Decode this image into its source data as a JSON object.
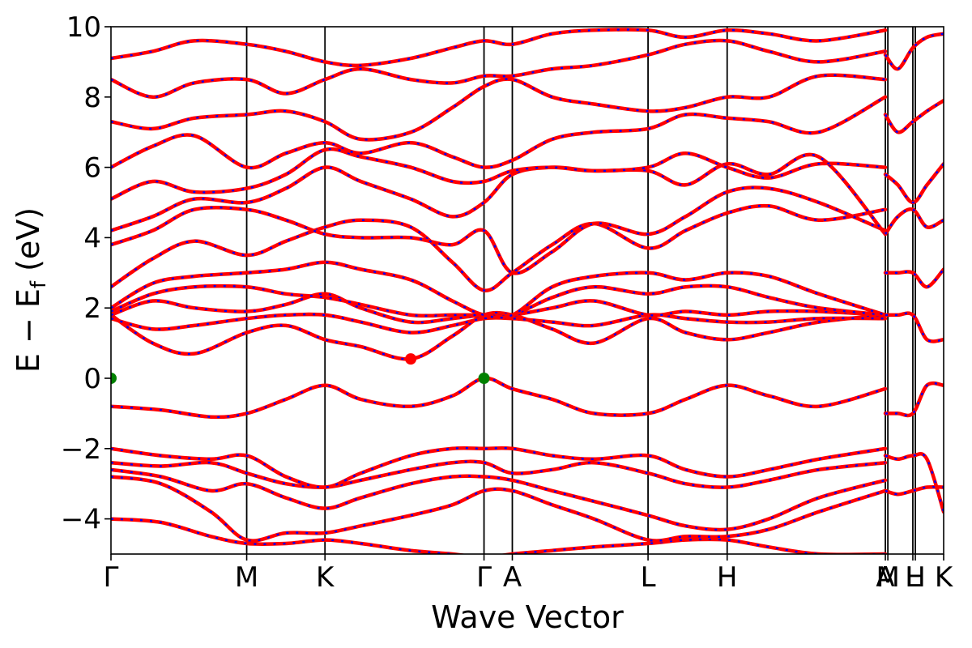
{
  "chart_data": {
    "type": "line",
    "title": "",
    "xlabel": "Wave Vector",
    "ylabel_main": "E − E",
    "ylabel_sub": "f",
    "ylabel_unit": " (eV)",
    "ylim": [
      -5,
      10
    ],
    "y_ticks": [
      {
        "value": -4,
        "label": "−4"
      },
      {
        "value": -2,
        "label": "−2"
      },
      {
        "value": 0,
        "label": "0"
      },
      {
        "value": 2,
        "label": "2"
      },
      {
        "value": 4,
        "label": "4"
      },
      {
        "value": 6,
        "label": "6"
      },
      {
        "value": 8,
        "label": "8"
      },
      {
        "value": 10,
        "label": "10"
      }
    ],
    "xlim": [
      0,
      1
    ],
    "k_points": [
      {
        "pos": 0.0,
        "label": "Γ"
      },
      {
        "pos": 0.163,
        "label": "M"
      },
      {
        "pos": 0.257,
        "label": "K"
      },
      {
        "pos": 0.448,
        "label": "Γ"
      },
      {
        "pos": 0.482,
        "label": "A"
      },
      {
        "pos": 0.645,
        "label": "L"
      },
      {
        "pos": 0.74,
        "label": "H"
      },
      {
        "pos": 0.93,
        "label": "A"
      },
      {
        "pos": 0.933,
        "label": "M"
      },
      {
        "pos": 0.963,
        "label": "L"
      },
      {
        "pos": 0.966,
        "label": "H"
      },
      {
        "pos": 1.0,
        "label": "K"
      }
    ],
    "series_colors": {
      "primary": "#ff0000",
      "overlay": "#0000ff"
    },
    "band_extrema": {
      "vbm": [
        {
          "k": 0.0,
          "E": 0.0
        },
        {
          "k": 0.448,
          "E": 0.0
        }
      ],
      "cbm": [
        {
          "k": 0.36,
          "E": 0.55
        }
      ],
      "vbm_color": "#008000",
      "cbm_color": "#ff0000"
    },
    "bands": [
      {
        "k": [
          0,
          0.06,
          0.12,
          0.163,
          0.21,
          0.257,
          0.3,
          0.36,
          0.41,
          0.448,
          0.482,
          0.53,
          0.58,
          0.645,
          0.69,
          0.74,
          0.79,
          0.85,
          0.93
        ],
        "E": [
          -4.0,
          -4.1,
          -4.5,
          -4.7,
          -4.7,
          -4.6,
          -4.7,
          -4.9,
          -5.0,
          -5.1,
          -5.0,
          -4.9,
          -4.8,
          -4.7,
          -4.6,
          -4.6,
          -4.8,
          -5.0,
          -5.0
        ]
      },
      {
        "k": [
          0,
          0.06,
          0.12,
          0.163,
          0.21,
          0.257,
          0.3,
          0.36,
          0.41,
          0.448,
          0.482,
          0.53,
          0.58,
          0.645,
          0.69,
          0.74,
          0.79,
          0.85,
          0.93
        ],
        "E": [
          -2.8,
          -3.0,
          -3.8,
          -4.6,
          -4.4,
          -4.4,
          -4.2,
          -3.9,
          -3.6,
          -3.2,
          -3.2,
          -3.6,
          -4.0,
          -4.6,
          -4.5,
          -4.5,
          -4.3,
          -3.8,
          -3.2
        ]
      },
      {
        "k": [
          0,
          0.06,
          0.12,
          0.163,
          0.21,
          0.257,
          0.3,
          0.36,
          0.41,
          0.448,
          0.482,
          0.53,
          0.58,
          0.645,
          0.69,
          0.74,
          0.79,
          0.85,
          0.93
        ],
        "E": [
          -2.6,
          -2.8,
          -3.2,
          -3.0,
          -3.4,
          -3.7,
          -3.4,
          -3.0,
          -2.8,
          -2.8,
          -2.9,
          -3.2,
          -3.5,
          -3.9,
          -4.2,
          -4.3,
          -4.0,
          -3.4,
          -2.9
        ]
      },
      {
        "k": [
          0,
          0.06,
          0.12,
          0.163,
          0.21,
          0.257,
          0.3,
          0.36,
          0.41,
          0.448,
          0.482,
          0.53,
          0.58,
          0.645,
          0.69,
          0.74,
          0.79,
          0.85,
          0.93
        ],
        "E": [
          -2.4,
          -2.5,
          -2.4,
          -2.7,
          -3.0,
          -3.1,
          -2.9,
          -2.6,
          -2.4,
          -2.4,
          -2.7,
          -2.6,
          -2.4,
          -2.7,
          -3.0,
          -3.1,
          -2.9,
          -2.6,
          -2.4
        ]
      },
      {
        "k": [
          0,
          0.06,
          0.12,
          0.163,
          0.21,
          0.257,
          0.3,
          0.36,
          0.41,
          0.448,
          0.482,
          0.53,
          0.58,
          0.645,
          0.69,
          0.74,
          0.79,
          0.85,
          0.93
        ],
        "E": [
          -2.0,
          -2.2,
          -2.3,
          -2.2,
          -2.8,
          -3.1,
          -2.7,
          -2.2,
          -2.0,
          -2.0,
          -2.0,
          -2.2,
          -2.3,
          -2.2,
          -2.6,
          -2.8,
          -2.6,
          -2.3,
          -2.0
        ]
      },
      {
        "k": [
          0,
          0.06,
          0.12,
          0.163,
          0.21,
          0.257,
          0.3,
          0.36,
          0.41,
          0.448,
          0.482,
          0.53,
          0.58,
          0.645,
          0.69,
          0.74,
          0.79,
          0.85,
          0.93
        ],
        "E": [
          -0.8,
          -0.9,
          -1.1,
          -1.0,
          -0.6,
          -0.2,
          -0.6,
          -0.8,
          -0.5,
          0.0,
          -0.3,
          -0.6,
          -1.0,
          -1.0,
          -0.6,
          -0.2,
          -0.5,
          -0.8,
          -0.3
        ]
      },
      {
        "k": [
          0,
          0.05,
          0.1,
          0.163,
          0.21,
          0.257,
          0.3,
          0.36,
          0.41,
          0.448,
          0.482,
          0.53,
          0.58,
          0.645,
          0.69,
          0.74,
          0.79,
          0.85,
          0.93
        ],
        "E": [
          1.8,
          1.0,
          0.7,
          1.3,
          1.5,
          1.1,
          0.9,
          0.55,
          1.2,
          1.8,
          1.8,
          1.4,
          1.0,
          1.7,
          1.3,
          1.1,
          1.3,
          1.6,
          1.8
        ]
      },
      {
        "k": [
          0,
          0.05,
          0.1,
          0.163,
          0.21,
          0.257,
          0.3,
          0.36,
          0.41,
          0.448,
          0.482,
          0.53,
          0.58,
          0.645,
          0.69,
          0.74,
          0.79,
          0.85,
          0.93
        ],
        "E": [
          1.7,
          1.4,
          1.5,
          1.7,
          1.8,
          1.8,
          1.6,
          1.3,
          1.5,
          1.7,
          1.7,
          1.6,
          1.5,
          1.8,
          1.7,
          1.6,
          1.6,
          1.7,
          1.7
        ]
      },
      {
        "k": [
          0,
          0.05,
          0.1,
          0.163,
          0.21,
          0.257,
          0.3,
          0.36,
          0.41,
          0.448,
          0.482,
          0.53,
          0.58,
          0.645,
          0.69,
          0.74,
          0.79,
          0.85,
          0.93
        ],
        "E": [
          1.8,
          2.2,
          2.0,
          1.9,
          2.1,
          2.4,
          2.0,
          1.6,
          1.7,
          1.8,
          1.8,
          2.0,
          2.2,
          1.8,
          1.9,
          1.8,
          1.9,
          1.9,
          1.8
        ]
      },
      {
        "k": [
          0,
          0.05,
          0.1,
          0.163,
          0.21,
          0.257,
          0.3,
          0.36,
          0.41,
          0.448,
          0.482,
          0.53,
          0.58,
          0.645,
          0.69,
          0.74,
          0.79,
          0.85,
          0.93
        ],
        "E": [
          1.9,
          2.4,
          2.6,
          2.6,
          2.4,
          2.3,
          2.1,
          1.8,
          1.8,
          1.8,
          1.8,
          2.3,
          2.6,
          2.4,
          2.6,
          2.6,
          2.3,
          2.0,
          1.8
        ]
      },
      {
        "k": [
          0,
          0.05,
          0.1,
          0.163,
          0.21,
          0.257,
          0.3,
          0.36,
          0.41,
          0.448,
          0.482,
          0.53,
          0.58,
          0.645,
          0.69,
          0.74,
          0.79,
          0.85,
          0.93
        ],
        "E": [
          2.0,
          2.7,
          2.9,
          3.0,
          3.1,
          3.3,
          3.1,
          2.8,
          2.2,
          1.8,
          1.8,
          2.6,
          2.9,
          3.0,
          2.8,
          3.0,
          2.9,
          2.4,
          1.8
        ]
      },
      {
        "k": [
          0,
          0.05,
          0.1,
          0.163,
          0.21,
          0.257,
          0.3,
          0.36,
          0.41,
          0.448,
          0.482,
          0.53,
          0.58,
          0.645,
          0.69,
          0.74,
          0.79,
          0.85,
          0.93
        ],
        "E": [
          2.6,
          3.4,
          3.9,
          3.5,
          3.9,
          4.3,
          4.5,
          4.3,
          3.3,
          2.5,
          3.0,
          3.8,
          4.4,
          3.7,
          4.2,
          4.7,
          4.9,
          4.5,
          4.8
        ]
      },
      {
        "k": [
          0,
          0.05,
          0.1,
          0.163,
          0.21,
          0.257,
          0.3,
          0.36,
          0.41,
          0.448,
          0.482,
          0.53,
          0.58,
          0.645,
          0.69,
          0.74,
          0.79,
          0.85,
          0.93
        ],
        "E": [
          3.8,
          4.2,
          4.8,
          4.8,
          4.5,
          4.1,
          4.0,
          4.0,
          3.8,
          4.2,
          3.0,
          3.6,
          4.4,
          4.1,
          4.6,
          5.3,
          5.4,
          5.0,
          4.2
        ]
      },
      {
        "k": [
          0,
          0.05,
          0.1,
          0.163,
          0.21,
          0.257,
          0.3,
          0.36,
          0.41,
          0.448,
          0.482,
          0.53,
          0.58,
          0.645,
          0.69,
          0.74,
          0.79,
          0.85,
          0.93
        ],
        "E": [
          4.2,
          4.6,
          5.1,
          5.0,
          5.4,
          6.0,
          5.6,
          5.1,
          4.6,
          5.0,
          5.8,
          6.0,
          5.9,
          5.9,
          5.5,
          6.1,
          5.8,
          6.3,
          4.1
        ]
      },
      {
        "k": [
          0,
          0.05,
          0.1,
          0.163,
          0.21,
          0.257,
          0.3,
          0.36,
          0.41,
          0.448,
          0.482,
          0.53,
          0.58,
          0.645,
          0.69,
          0.74,
          0.79,
          0.85,
          0.93
        ],
        "E": [
          5.1,
          5.6,
          5.3,
          5.4,
          5.8,
          6.5,
          6.3,
          6.0,
          5.6,
          5.6,
          5.9,
          6.0,
          5.9,
          6.0,
          6.4,
          6.0,
          5.7,
          6.1,
          6.0
        ]
      },
      {
        "k": [
          0,
          0.05,
          0.1,
          0.163,
          0.21,
          0.257,
          0.3,
          0.36,
          0.41,
          0.448,
          0.482,
          0.53,
          0.58,
          0.645,
          0.69,
          0.74,
          0.79,
          0.85,
          0.93
        ],
        "E": [
          6.0,
          6.6,
          6.9,
          6.0,
          6.4,
          6.7,
          6.4,
          6.7,
          6.3,
          6.0,
          6.2,
          6.8,
          7.0,
          7.1,
          7.5,
          7.4,
          7.3,
          7.0,
          8.0
        ]
      },
      {
        "k": [
          0,
          0.05,
          0.1,
          0.163,
          0.21,
          0.257,
          0.3,
          0.36,
          0.41,
          0.448,
          0.482,
          0.53,
          0.58,
          0.645,
          0.69,
          0.74,
          0.79,
          0.85,
          0.93
        ],
        "E": [
          7.3,
          7.1,
          7.4,
          7.5,
          7.6,
          7.3,
          6.8,
          7.0,
          7.7,
          8.3,
          8.5,
          8.0,
          7.8,
          7.6,
          7.7,
          8.0,
          8.0,
          8.6,
          8.5
        ]
      },
      {
        "k": [
          0,
          0.05,
          0.1,
          0.163,
          0.21,
          0.257,
          0.3,
          0.36,
          0.41,
          0.448,
          0.482,
          0.53,
          0.58,
          0.645,
          0.69,
          0.74,
          0.79,
          0.85,
          0.93
        ],
        "E": [
          8.5,
          8.0,
          8.4,
          8.5,
          8.1,
          8.5,
          8.8,
          8.5,
          8.4,
          8.6,
          8.6,
          8.8,
          8.9,
          9.2,
          9.5,
          9.6,
          9.3,
          9.0,
          9.3
        ]
      },
      {
        "k": [
          0,
          0.05,
          0.1,
          0.163,
          0.21,
          0.257,
          0.3,
          0.36,
          0.41,
          0.448,
          0.482,
          0.53,
          0.58,
          0.645,
          0.69,
          0.74,
          0.79,
          0.85,
          0.93
        ],
        "E": [
          9.1,
          9.3,
          9.6,
          9.5,
          9.3,
          9.0,
          8.9,
          9.1,
          9.4,
          9.6,
          9.5,
          9.8,
          9.9,
          9.9,
          9.7,
          9.9,
          9.8,
          9.6,
          9.9
        ]
      },
      {
        "k": [
          0.93,
          0.945,
          0.963,
          0.98,
          1.0
        ],
        "E": [
          -3.2,
          -3.3,
          -3.2,
          -3.1,
          -3.1
        ]
      },
      {
        "k": [
          0.93,
          0.945,
          0.963,
          0.98,
          1.0
        ],
        "E": [
          -2.2,
          -2.3,
          -2.2,
          -2.3,
          -3.8
        ]
      },
      {
        "k": [
          0.93,
          0.945,
          0.963,
          0.98,
          1.0
        ],
        "E": [
          -1.0,
          -1.0,
          -1.0,
          -0.2,
          -0.2
        ]
      },
      {
        "k": [
          0.93,
          0.945,
          0.963,
          0.98,
          1.0
        ],
        "E": [
          1.8,
          1.8,
          1.8,
          1.1,
          1.1
        ]
      },
      {
        "k": [
          0.93,
          0.945,
          0.963,
          0.98,
          1.0
        ],
        "E": [
          3.0,
          3.0,
          3.0,
          2.6,
          3.1
        ]
      },
      {
        "k": [
          0.93,
          0.945,
          0.963,
          0.98,
          1.0
        ],
        "E": [
          4.1,
          4.6,
          4.8,
          4.3,
          4.5
        ]
      },
      {
        "k": [
          0.93,
          0.945,
          0.963,
          0.98,
          1.0
        ],
        "E": [
          5.8,
          5.5,
          5.0,
          5.5,
          6.1
        ]
      },
      {
        "k": [
          0.93,
          0.945,
          0.963,
          0.98,
          1.0
        ],
        "E": [
          7.5,
          7.0,
          7.3,
          7.6,
          7.9
        ]
      },
      {
        "k": [
          0.93,
          0.945,
          0.963,
          0.98,
          1.0
        ],
        "E": [
          9.2,
          8.8,
          9.4,
          9.7,
          9.8
        ]
      }
    ]
  }
}
